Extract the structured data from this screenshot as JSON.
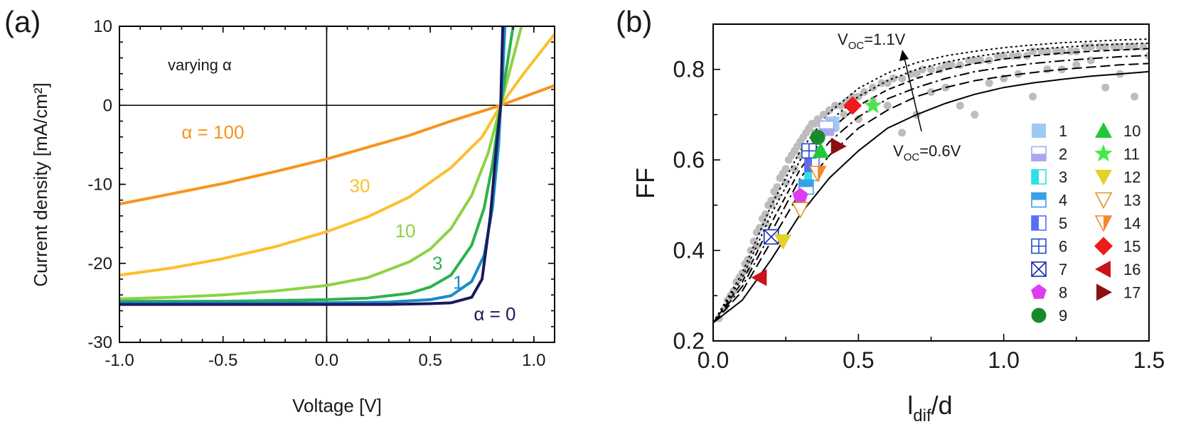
{
  "chart_data": [
    {
      "panel_label": "(a)",
      "type": "line",
      "xlabel": "Voltage [V]",
      "ylabel": "Current density [mA/cm²]",
      "xlim": [
        -1.0,
        1.1
      ],
      "ylim": [
        -30,
        10
      ],
      "xticks": [
        "-1.0",
        "-0.5",
        "0.0",
        "0.5",
        "1.0"
      ],
      "yticks": [
        "10",
        "0",
        "-10",
        "-20",
        "-30"
      ],
      "annotation": "varying α",
      "series": [
        {
          "name": "α = 100",
          "color": "#f7941d",
          "x": [
            -1.0,
            -0.75,
            -0.5,
            -0.25,
            0.0,
            0.2,
            0.4,
            0.6,
            0.84,
            1.1
          ],
          "y": [
            -12.5,
            -11.2,
            -9.9,
            -8.4,
            -6.8,
            -5.3,
            -3.8,
            -2.0,
            0.0,
            2.5
          ]
        },
        {
          "name": "30",
          "color": "#fbc02d",
          "x": [
            -1.0,
            -0.75,
            -0.5,
            -0.25,
            0.0,
            0.2,
            0.4,
            0.6,
            0.75,
            0.84,
            0.95,
            1.1
          ],
          "y": [
            -21.5,
            -20.6,
            -19.4,
            -17.9,
            -16.0,
            -14.1,
            -11.6,
            -7.9,
            -4.0,
            0.0,
            4.0,
            9.0
          ]
        },
        {
          "name": "10",
          "color": "#8bd346",
          "x": [
            -1.0,
            -0.75,
            -0.5,
            -0.25,
            0.0,
            0.2,
            0.4,
            0.5,
            0.6,
            0.7,
            0.78,
            0.84,
            0.9,
            0.94
          ],
          "y": [
            -24.5,
            -24.3,
            -24.0,
            -23.5,
            -22.8,
            -21.8,
            -19.8,
            -18.2,
            -15.6,
            -11.4,
            -6.0,
            0.0,
            6.0,
            10.0
          ]
        },
        {
          "name": "3",
          "color": "#2db34a",
          "x": [
            -1.0,
            -0.5,
            0.0,
            0.2,
            0.4,
            0.5,
            0.6,
            0.7,
            0.76,
            0.8,
            0.84,
            0.87,
            0.9
          ],
          "y": [
            -24.8,
            -24.8,
            -24.6,
            -24.4,
            -23.8,
            -23.0,
            -21.5,
            -17.7,
            -13.0,
            -7.5,
            0.0,
            5.0,
            10.0
          ]
        },
        {
          "name": "1",
          "color": "#1a8bc9",
          "x": [
            -1.0,
            -0.5,
            0.0,
            0.3,
            0.5,
            0.6,
            0.7,
            0.76,
            0.8,
            0.83,
            0.84,
            0.85,
            0.86
          ],
          "y": [
            -25.0,
            -25.0,
            -25.0,
            -24.9,
            -24.6,
            -24.1,
            -22.3,
            -19.0,
            -13.0,
            -5.0,
            0.0,
            4.0,
            10.0
          ]
        },
        {
          "name": "α = 0",
          "color": "#1b1a5e",
          "x": [
            -1.0,
            -0.5,
            0.0,
            0.3,
            0.5,
            0.6,
            0.7,
            0.75,
            0.79,
            0.82,
            0.84,
            0.85
          ],
          "y": [
            -25.2,
            -25.2,
            -25.2,
            -25.2,
            -25.1,
            -25.0,
            -24.3,
            -22.0,
            -14.0,
            -5.0,
            0.0,
            10.0
          ]
        }
      ]
    },
    {
      "panel_label": "(b)",
      "type": "scatter",
      "xlabel": "l_dif/d",
      "ylabel": "FF",
      "xlim": [
        0.0,
        1.5
      ],
      "ylim": [
        0.2,
        0.9
      ],
      "xticks": [
        "0.0",
        "0.5",
        "1.0",
        "1.5"
      ],
      "yticks": [
        "0.2",
        "0.4",
        "0.6",
        "0.8"
      ],
      "annotations": {
        "top_sub": "OC",
        "top_prefix": "V",
        "top_suffix": "=1.1V",
        "bottom_prefix": "V",
        "bottom_sub": "OC",
        "bottom_suffix": "=0.6V"
      },
      "curves": {
        "x": [
          0.0,
          0.1,
          0.2,
          0.3,
          0.4,
          0.5,
          0.6,
          0.7,
          0.8,
          0.9,
          1.0,
          1.1,
          1.2,
          1.3,
          1.4,
          1.5
        ],
        "lines": [
          {
            "style": "solid",
            "y": [
              0.24,
              0.29,
              0.38,
              0.48,
              0.56,
              0.62,
              0.67,
              0.7,
              0.725,
              0.745,
              0.76,
              0.77,
              0.778,
              0.785,
              0.79,
              0.795
            ]
          },
          {
            "style": "dash",
            "y": [
              0.24,
              0.31,
              0.42,
              0.53,
              0.61,
              0.67,
              0.71,
              0.74,
              0.76,
              0.775,
              0.785,
              0.793,
              0.8,
              0.805,
              0.81,
              0.813
            ]
          },
          {
            "style": "dashdot",
            "y": [
              0.24,
              0.32,
              0.44,
              0.56,
              0.64,
              0.695,
              0.735,
              0.76,
              0.78,
              0.795,
              0.805,
              0.813,
              0.819,
              0.824,
              0.828,
              0.831
            ]
          },
          {
            "style": "dash-long",
            "y": [
              0.24,
              0.33,
              0.46,
              0.58,
              0.665,
              0.72,
              0.755,
              0.78,
              0.8,
              0.813,
              0.823,
              0.83,
              0.836,
              0.84,
              0.843,
              0.846
            ]
          },
          {
            "style": "dot",
            "y": [
              0.24,
              0.34,
              0.48,
              0.6,
              0.685,
              0.74,
              0.775,
              0.8,
              0.816,
              0.828,
              0.837,
              0.844,
              0.849,
              0.853,
              0.856,
              0.858
            ]
          },
          {
            "style": "dot",
            "y": [
              0.24,
              0.35,
              0.5,
              0.62,
              0.705,
              0.758,
              0.792,
              0.815,
              0.83,
              0.84,
              0.848,
              0.854,
              0.859,
              0.862,
              0.865,
              0.867
            ]
          }
        ]
      },
      "gray_points": {
        "color": "#bdbdbd",
        "x": [
          0.02,
          0.04,
          0.05,
          0.07,
          0.08,
          0.1,
          0.11,
          0.12,
          0.13,
          0.14,
          0.15,
          0.16,
          0.17,
          0.18,
          0.19,
          0.2,
          0.21,
          0.22,
          0.23,
          0.24,
          0.25,
          0.26,
          0.27,
          0.28,
          0.29,
          0.3,
          0.31,
          0.32,
          0.33,
          0.34,
          0.35,
          0.36,
          0.38,
          0.4,
          0.42,
          0.44,
          0.46,
          0.48,
          0.5,
          0.52,
          0.55,
          0.58,
          0.6,
          0.62,
          0.65,
          0.68,
          0.7,
          0.72,
          0.75,
          0.78,
          0.8,
          0.82,
          0.85,
          0.88,
          0.9,
          0.92,
          0.95,
          0.98,
          1.0,
          1.03,
          1.05,
          1.08,
          1.1,
          1.13,
          1.15,
          1.18,
          1.2,
          1.23,
          1.25,
          1.28,
          1.3,
          1.33,
          1.35,
          1.38,
          1.4,
          1.43,
          1.45,
          1.48,
          0.06,
          0.09,
          0.15,
          0.2,
          0.25,
          0.3,
          0.35,
          0.45,
          0.55,
          0.65,
          0.75,
          0.85,
          0.95,
          1.05,
          1.15,
          1.25,
          1.35,
          1.45,
          0.12,
          0.18,
          0.22,
          0.28,
          0.32,
          0.42,
          0.5,
          0.6,
          0.7,
          0.8,
          0.9,
          1.0,
          1.1,
          1.2,
          1.3,
          1.4,
          1.5
        ],
        "y": [
          0.25,
          0.27,
          0.29,
          0.31,
          0.33,
          0.35,
          0.37,
          0.38,
          0.4,
          0.42,
          0.44,
          0.45,
          0.47,
          0.48,
          0.5,
          0.51,
          0.53,
          0.54,
          0.56,
          0.57,
          0.58,
          0.6,
          0.61,
          0.62,
          0.63,
          0.64,
          0.65,
          0.66,
          0.67,
          0.68,
          0.68,
          0.69,
          0.7,
          0.71,
          0.72,
          0.72,
          0.73,
          0.74,
          0.74,
          0.75,
          0.76,
          0.77,
          0.77,
          0.78,
          0.78,
          0.79,
          0.79,
          0.8,
          0.8,
          0.8,
          0.81,
          0.81,
          0.81,
          0.82,
          0.82,
          0.82,
          0.82,
          0.83,
          0.83,
          0.83,
          0.83,
          0.83,
          0.84,
          0.84,
          0.84,
          0.84,
          0.84,
          0.84,
          0.84,
          0.85,
          0.85,
          0.85,
          0.85,
          0.85,
          0.85,
          0.85,
          0.85,
          0.85,
          0.3,
          0.34,
          0.41,
          0.5,
          0.55,
          0.61,
          0.66,
          0.7,
          0.73,
          0.66,
          0.75,
          0.72,
          0.77,
          0.79,
          0.8,
          0.81,
          0.76,
          0.74,
          0.36,
          0.46,
          0.52,
          0.58,
          0.62,
          0.67,
          0.69,
          0.72,
          0.7,
          0.76,
          0.7,
          0.78,
          0.74,
          0.8,
          0.82,
          0.79,
          0.83
        ]
      },
      "legend": [
        {
          "label": "1",
          "marker": "square",
          "color": "#9ec9f0",
          "x": 0.41,
          "y": 0.68
        },
        {
          "label": "2",
          "marker": "square-half",
          "color": "#a9a8ef",
          "x": 0.39,
          "y": 0.67
        },
        {
          "label": "3",
          "marker": "square-half-v",
          "color": "#2ee0e8",
          "x": 0.34,
          "y": 0.57
        },
        {
          "label": "4",
          "marker": "square-half-h",
          "color": "#3aa0e6",
          "x": 0.32,
          "y": 0.54
        },
        {
          "label": "5",
          "marker": "square-half-v",
          "color": "#5a6ef0",
          "x": 0.34,
          "y": 0.59
        },
        {
          "label": "6",
          "marker": "square-plus",
          "color": "#1f4bc9",
          "x": 0.33,
          "y": 0.62
        },
        {
          "label": "7",
          "marker": "square-x",
          "color": "#1a2aa8",
          "x": 0.2,
          "y": 0.43
        },
        {
          "label": "8",
          "marker": "pentagon",
          "color": "#dc3ef0",
          "x": 0.3,
          "y": 0.52
        },
        {
          "label": "9",
          "marker": "circle",
          "color": "#178a2d",
          "x": 0.36,
          "y": 0.65
        },
        {
          "label": "10",
          "marker": "triangle-up",
          "color": "#1fc93a",
          "x": 0.37,
          "y": 0.62
        },
        {
          "label": "11",
          "marker": "star",
          "color": "#45e84a",
          "x": 0.55,
          "y": 0.72
        },
        {
          "label": "12",
          "marker": "triangle-down",
          "color": "#e2d22a",
          "x": 0.24,
          "y": 0.42
        },
        {
          "label": "13",
          "marker": "triangle-down-open",
          "color": "#e0952a",
          "x": 0.3,
          "y": 0.49
        },
        {
          "label": "14",
          "marker": "triangle-down-half",
          "color": "#f08a2e",
          "x": 0.36,
          "y": 0.57
        },
        {
          "label": "15",
          "marker": "diamond",
          "color": "#ef1a1a",
          "x": 0.48,
          "y": 0.72
        },
        {
          "label": "16",
          "marker": "triangle-left",
          "color": "#c9131b",
          "x": 0.16,
          "y": 0.34
        },
        {
          "label": "17",
          "marker": "triangle-right",
          "color": "#8c0f12",
          "x": 0.43,
          "y": 0.63
        }
      ]
    }
  ]
}
